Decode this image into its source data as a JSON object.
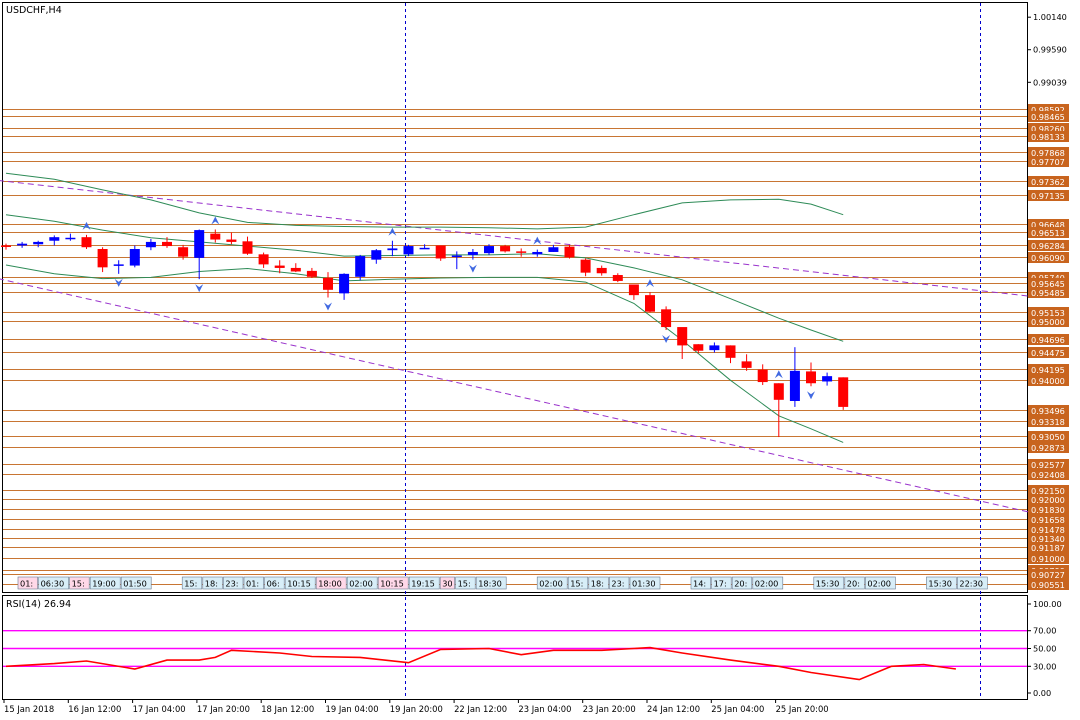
{
  "window": {
    "symbol_title": "USDCHF,H4"
  },
  "rsi_panel": {
    "label": "RSI(14) 26.94",
    "levels": [
      70,
      50,
      30
    ],
    "ticks": [
      "100.00",
      "70.00",
      "50.00",
      "30.00",
      "0.00"
    ]
  },
  "colors": {
    "bull": "#0000ff",
    "bear": "#ff0000",
    "level_lines": "#c87533",
    "price_label_bg": "#c8641e",
    "bands": "#2e8b57",
    "channel": "#9932cc",
    "rsi_line": "#ff0000",
    "rsi_levels": "#ff00ff",
    "separator": "#0000cd"
  },
  "session_boxes": [
    "01:",
    "06:30",
    "15:",
    "19:00",
    "01:50",
    "15:",
    "18:",
    "23:",
    "01:",
    "06:",
    "10:15",
    "18:00",
    "02:00",
    "10:15",
    "19:15",
    "30",
    "15:",
    "18:30",
    "02:00",
    "15:",
    "18:",
    "23:",
    "01:30",
    "14:",
    "17:",
    "20:",
    "02:00",
    "15:30",
    "20:",
    "02:00",
    "15:30",
    "22:30"
  ],
  "chart_data": {
    "type": "candlestick",
    "title": "USDCHF,H4",
    "ylim": [
      0.9042,
      1.0038
    ],
    "price_axis_ticks": [
      1.0014,
      0.9959,
      0.99039
    ],
    "level_lines": [
      0.98592,
      0.98465,
      0.9826,
      0.98133,
      0.97868,
      0.97707,
      0.97362,
      0.97135,
      0.96648,
      0.96513,
      0.96284,
      0.9609,
      0.9574,
      0.95645,
      0.95485,
      0.95153,
      0.95,
      0.94696,
      0.94475,
      0.94195,
      0.94,
      0.93496,
      0.93318,
      0.9305,
      0.92873,
      0.92577,
      0.92408,
      0.9215,
      0.92,
      0.9183,
      0.91658,
      0.91478,
      0.9134,
      0.91187,
      0.91,
      0.9079,
      0.90727,
      0.90551
    ],
    "x_labels": [
      "15 Jan 2018",
      "16 Jan 12:00",
      "17 Jan 04:00",
      "17 Jan 20:00",
      "18 Jan 12:00",
      "19 Jan 04:00",
      "19 Jan 20:00",
      "22 Jan 12:00",
      "23 Jan 04:00",
      "23 Jan 20:00",
      "24 Jan 12:00",
      "25 Jan 04:00",
      "25 Jan 20:00"
    ],
    "candles": [
      {
        "o": 0.9628,
        "h": 0.9631,
        "l": 0.9621,
        "c": 0.9626
      },
      {
        "o": 0.9628,
        "h": 0.9634,
        "l": 0.9624,
        "c": 0.9631
      },
      {
        "o": 0.963,
        "h": 0.9636,
        "l": 0.9625,
        "c": 0.9634
      },
      {
        "o": 0.9636,
        "h": 0.9645,
        "l": 0.9628,
        "c": 0.9642
      },
      {
        "o": 0.9641,
        "h": 0.9648,
        "l": 0.9636,
        "c": 0.9641
      },
      {
        "o": 0.9642,
        "h": 0.9646,
        "l": 0.9622,
        "c": 0.9625
      },
      {
        "o": 0.9622,
        "h": 0.9625,
        "l": 0.9583,
        "c": 0.9591
      },
      {
        "o": 0.9596,
        "h": 0.9603,
        "l": 0.958,
        "c": 0.9596
      },
      {
        "o": 0.9594,
        "h": 0.9628,
        "l": 0.9591,
        "c": 0.9622
      },
      {
        "o": 0.9625,
        "h": 0.9639,
        "l": 0.962,
        "c": 0.9634
      },
      {
        "o": 0.9634,
        "h": 0.9642,
        "l": 0.9624,
        "c": 0.9627
      },
      {
        "o": 0.9625,
        "h": 0.9629,
        "l": 0.9604,
        "c": 0.9609
      },
      {
        "o": 0.9607,
        "h": 0.9655,
        "l": 0.9571,
        "c": 0.9654
      },
      {
        "o": 0.9648,
        "h": 0.9655,
        "l": 0.9633,
        "c": 0.9638
      },
      {
        "o": 0.9638,
        "h": 0.965,
        "l": 0.963,
        "c": 0.9634
      },
      {
        "o": 0.9635,
        "h": 0.9643,
        "l": 0.9612,
        "c": 0.9614
      },
      {
        "o": 0.9613,
        "h": 0.9616,
        "l": 0.959,
        "c": 0.9596
      },
      {
        "o": 0.9594,
        "h": 0.9603,
        "l": 0.9581,
        "c": 0.959
      },
      {
        "o": 0.959,
        "h": 0.9598,
        "l": 0.9583,
        "c": 0.9584
      },
      {
        "o": 0.9585,
        "h": 0.959,
        "l": 0.9573,
        "c": 0.9575
      },
      {
        "o": 0.9573,
        "h": 0.9583,
        "l": 0.954,
        "c": 0.9553
      },
      {
        "o": 0.9547,
        "h": 0.9581,
        "l": 0.9536,
        "c": 0.958
      },
      {
        "o": 0.9575,
        "h": 0.9612,
        "l": 0.9569,
        "c": 0.961
      },
      {
        "o": 0.9604,
        "h": 0.9622,
        "l": 0.9597,
        "c": 0.962
      },
      {
        "o": 0.962,
        "h": 0.9636,
        "l": 0.961,
        "c": 0.9623
      },
      {
        "o": 0.9613,
        "h": 0.9629,
        "l": 0.961,
        "c": 0.9627
      },
      {
        "o": 0.9624,
        "h": 0.963,
        "l": 0.9622,
        "c": 0.9624
      },
      {
        "o": 0.9628,
        "h": 0.9628,
        "l": 0.9602,
        "c": 0.9606
      },
      {
        "o": 0.961,
        "h": 0.9618,
        "l": 0.9588,
        "c": 0.9611
      },
      {
        "o": 0.9612,
        "h": 0.9622,
        "l": 0.9604,
        "c": 0.9617
      },
      {
        "o": 0.9615,
        "h": 0.963,
        "l": 0.9612,
        "c": 0.9627
      },
      {
        "o": 0.9627,
        "h": 0.9629,
        "l": 0.9616,
        "c": 0.9618
      },
      {
        "o": 0.9618,
        "h": 0.9623,
        "l": 0.9609,
        "c": 0.9617
      },
      {
        "o": 0.9613,
        "h": 0.9621,
        "l": 0.9609,
        "c": 0.9617
      },
      {
        "o": 0.9617,
        "h": 0.9629,
        "l": 0.9617,
        "c": 0.9625
      },
      {
        "o": 0.9626,
        "h": 0.9629,
        "l": 0.9606,
        "c": 0.9608
      },
      {
        "o": 0.9604,
        "h": 0.9606,
        "l": 0.9576,
        "c": 0.9582
      },
      {
        "o": 0.959,
        "h": 0.9594,
        "l": 0.9577,
        "c": 0.9581
      },
      {
        "o": 0.9578,
        "h": 0.9581,
        "l": 0.9566,
        "c": 0.9568
      },
      {
        "o": 0.9562,
        "h": 0.9561,
        "l": 0.9536,
        "c": 0.9544
      },
      {
        "o": 0.9544,
        "h": 0.9549,
        "l": 0.9515,
        "c": 0.9516
      },
      {
        "o": 0.952,
        "h": 0.9525,
        "l": 0.9485,
        "c": 0.949
      },
      {
        "o": 0.949,
        "h": 0.9489,
        "l": 0.9436,
        "c": 0.9459
      },
      {
        "o": 0.9461,
        "h": 0.9461,
        "l": 0.9446,
        "c": 0.945
      },
      {
        "o": 0.9451,
        "h": 0.9464,
        "l": 0.9447,
        "c": 0.9459
      },
      {
        "o": 0.9459,
        "h": 0.9459,
        "l": 0.9429,
        "c": 0.9438
      },
      {
        "o": 0.9432,
        "h": 0.9444,
        "l": 0.9416,
        "c": 0.9421
      },
      {
        "o": 0.9418,
        "h": 0.9427,
        "l": 0.9392,
        "c": 0.9397
      },
      {
        "o": 0.9395,
        "h": 0.9395,
        "l": 0.9304,
        "c": 0.9367
      },
      {
        "o": 0.9365,
        "h": 0.9456,
        "l": 0.9355,
        "c": 0.9416
      },
      {
        "o": 0.9415,
        "h": 0.943,
        "l": 0.939,
        "c": 0.9395
      },
      {
        "o": 0.9398,
        "h": 0.9413,
        "l": 0.9391,
        "c": 0.9407
      },
      {
        "o": 0.9405,
        "h": 0.9405,
        "l": 0.935,
        "c": 0.9355
      }
    ],
    "bollinger": {
      "upper": [
        {
          "i": 0,
          "v": 0.975
        },
        {
          "i": 3,
          "v": 0.974
        },
        {
          "i": 6,
          "v": 0.9722
        },
        {
          "i": 9,
          "v": 0.9705
        },
        {
          "i": 12,
          "v": 0.9683
        },
        {
          "i": 15,
          "v": 0.9667
        },
        {
          "i": 18,
          "v": 0.9662
        },
        {
          "i": 21,
          "v": 0.966
        },
        {
          "i": 24,
          "v": 0.9659
        },
        {
          "i": 27,
          "v": 0.9659
        },
        {
          "i": 30,
          "v": 0.9658
        },
        {
          "i": 33,
          "v": 0.9656
        },
        {
          "i": 36,
          "v": 0.9659
        },
        {
          "i": 39,
          "v": 0.968
        },
        {
          "i": 42,
          "v": 0.97
        },
        {
          "i": 45,
          "v": 0.9705
        },
        {
          "i": 48,
          "v": 0.9706
        },
        {
          "i": 50,
          "v": 0.9698
        },
        {
          "i": 52,
          "v": 0.968
        }
      ],
      "middle": [
        {
          "i": 0,
          "v": 0.968
        },
        {
          "i": 3,
          "v": 0.9669
        },
        {
          "i": 6,
          "v": 0.9654
        },
        {
          "i": 9,
          "v": 0.9641
        },
        {
          "i": 12,
          "v": 0.9634
        },
        {
          "i": 15,
          "v": 0.9627
        },
        {
          "i": 18,
          "v": 0.962
        },
        {
          "i": 21,
          "v": 0.961
        },
        {
          "i": 24,
          "v": 0.9611
        },
        {
          "i": 27,
          "v": 0.9612
        },
        {
          "i": 30,
          "v": 0.9612
        },
        {
          "i": 33,
          "v": 0.9614
        },
        {
          "i": 36,
          "v": 0.9607
        },
        {
          "i": 39,
          "v": 0.959
        },
        {
          "i": 42,
          "v": 0.957
        },
        {
          "i": 45,
          "v": 0.9538
        },
        {
          "i": 48,
          "v": 0.9505
        },
        {
          "i": 50,
          "v": 0.9485
        },
        {
          "i": 52,
          "v": 0.9466
        }
      ],
      "lower": [
        {
          "i": 0,
          "v": 0.9595
        },
        {
          "i": 3,
          "v": 0.958
        },
        {
          "i": 6,
          "v": 0.9572
        },
        {
          "i": 9,
          "v": 0.9574
        },
        {
          "i": 12,
          "v": 0.9584
        },
        {
          "i": 15,
          "v": 0.9589
        },
        {
          "i": 18,
          "v": 0.958
        },
        {
          "i": 21,
          "v": 0.9568
        },
        {
          "i": 24,
          "v": 0.9571
        },
        {
          "i": 27,
          "v": 0.9573
        },
        {
          "i": 30,
          "v": 0.9574
        },
        {
          "i": 33,
          "v": 0.9574
        },
        {
          "i": 36,
          "v": 0.9566
        },
        {
          "i": 39,
          "v": 0.953
        },
        {
          "i": 42,
          "v": 0.9468
        },
        {
          "i": 45,
          "v": 0.94
        },
        {
          "i": 48,
          "v": 0.934
        },
        {
          "i": 50,
          "v": 0.9318
        },
        {
          "i": 52,
          "v": 0.9295
        }
      ]
    },
    "channel_lines": [
      {
        "from": {
          "i": -0.5,
          "v": 0.9738
        },
        "to": {
          "i": 64.3,
          "v": 0.954
        }
      },
      {
        "from": {
          "i": -0.5,
          "v": 0.9572
        },
        "to": {
          "i": 63.9,
          "v": 0.9175
        }
      }
    ],
    "fractals_up": [
      5,
      13,
      24,
      33,
      40,
      48
    ],
    "fractals_down": [
      7,
      12,
      20,
      29,
      41,
      50
    ],
    "rsi": [
      {
        "i": 0,
        "v": 30
      },
      {
        "i": 3,
        "v": 33
      },
      {
        "i": 5,
        "v": 36
      },
      {
        "i": 8,
        "v": 27
      },
      {
        "i": 10,
        "v": 37
      },
      {
        "i": 12,
        "v": 37
      },
      {
        "i": 13,
        "v": 40
      },
      {
        "i": 14,
        "v": 48
      },
      {
        "i": 17,
        "v": 45
      },
      {
        "i": 19,
        "v": 41
      },
      {
        "i": 22,
        "v": 40
      },
      {
        "i": 25,
        "v": 34
      },
      {
        "i": 27,
        "v": 49
      },
      {
        "i": 30,
        "v": 50
      },
      {
        "i": 32,
        "v": 43
      },
      {
        "i": 34,
        "v": 48
      },
      {
        "i": 37,
        "v": 48
      },
      {
        "i": 40,
        "v": 51
      },
      {
        "i": 42,
        "v": 45
      },
      {
        "i": 45,
        "v": 37
      },
      {
        "i": 48,
        "v": 30
      },
      {
        "i": 50,
        "v": 23
      },
      {
        "i": 53,
        "v": 15
      },
      {
        "i": 55,
        "v": 30
      },
      {
        "i": 57,
        "v": 32
      },
      {
        "i": 59,
        "v": 27
      }
    ]
  }
}
